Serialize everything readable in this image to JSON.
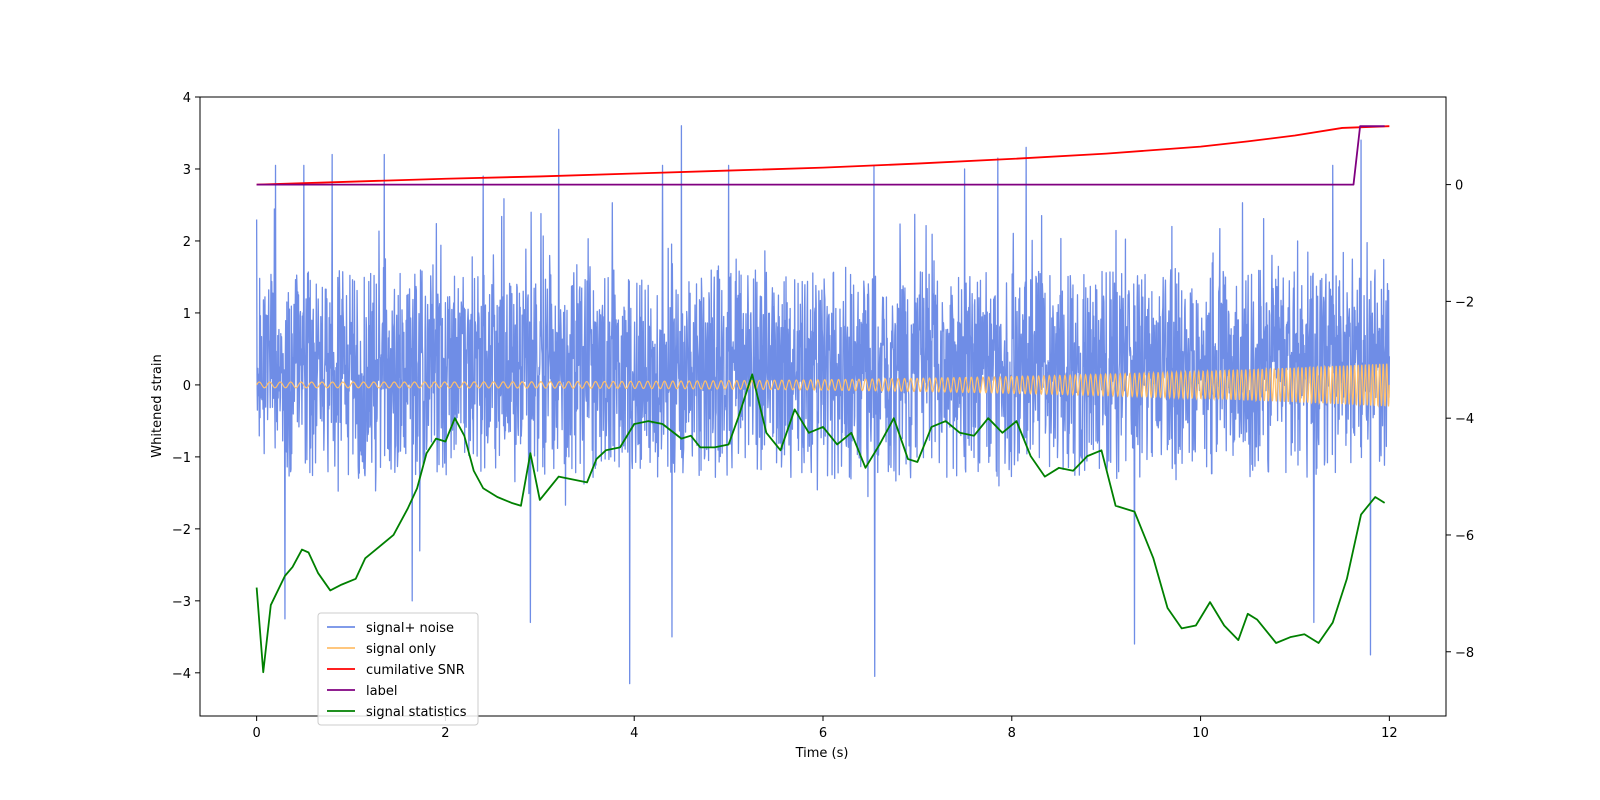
{
  "chart_data": {
    "type": "line",
    "title": "",
    "xlabel": "Time (s)",
    "ylabel": "Whitened strain",
    "xlim": [
      -0.6,
      12.6
    ],
    "ylim": [
      -4.6,
      4.0
    ],
    "ylim_right": [
      -9.1,
      1.5
    ],
    "x_ticks": [
      0,
      2,
      4,
      6,
      8,
      10,
      12
    ],
    "x_tick_labels": [
      "0",
      "2",
      "4",
      "6",
      "8",
      "10",
      "12"
    ],
    "y_ticks": [
      4,
      3,
      2,
      1,
      0,
      -1,
      -2,
      -3,
      -4
    ],
    "y_tick_labels": [
      "4",
      "3",
      "2",
      "1",
      "0",
      "−1",
      "−2",
      "−3",
      "−4"
    ],
    "y_right_ticks": [
      0,
      -2,
      -4,
      -6,
      -8
    ],
    "y_right_tick_labels": [
      "0",
      "−2",
      "−4",
      "−6",
      "−8"
    ],
    "grid": false,
    "legend_position": "lower-left",
    "series": [
      {
        "name": "signal+ noise",
        "axis": "left",
        "color": "#6f8de6",
        "style": "noise",
        "x_range": [
          0,
          12
        ],
        "center": 0.3,
        "sigma": 0.72,
        "band": [
          -1.3,
          1.6
        ],
        "spike_peaks": [
          [
            0.2,
            3.05
          ],
          [
            0.5,
            3.05
          ],
          [
            0.8,
            3.2
          ],
          [
            1.35,
            3.2
          ],
          [
            2.4,
            2.9
          ],
          [
            3.2,
            3.55
          ],
          [
            4.3,
            3.05
          ],
          [
            4.5,
            3.6
          ],
          [
            5.0,
            3.05
          ],
          [
            7.5,
            3.0
          ],
          [
            7.85,
            3.15
          ],
          [
            8.15,
            3.3
          ],
          [
            11.4,
            3.05
          ],
          [
            11.7,
            3.4
          ]
        ],
        "spike_troughs": [
          [
            1.65,
            -3.0
          ],
          [
            3.95,
            -4.15
          ],
          [
            4.4,
            -3.5
          ],
          [
            2.9,
            -3.3
          ],
          [
            6.55,
            -4.05
          ],
          [
            9.3,
            -3.6
          ],
          [
            11.2,
            -3.3
          ],
          [
            11.8,
            -3.75
          ],
          [
            0.3,
            -3.25
          ]
        ]
      },
      {
        "name": "signal only",
        "axis": "left",
        "color": "#ffbf6b",
        "style": "chirp",
        "x_range": [
          0,
          12
        ],
        "amplitude_start": 0.04,
        "amplitude_end": 0.3,
        "cycles": 180
      },
      {
        "name": "cumilative SNR",
        "axis": "right",
        "color": "#ff0000",
        "x": [
          0,
          1,
          2,
          3,
          4,
          5,
          6,
          7,
          8,
          9,
          10,
          10.5,
          11,
          11.5,
          12
        ],
        "y": [
          0.0,
          0.05,
          0.1,
          0.14,
          0.19,
          0.24,
          0.29,
          0.36,
          0.44,
          0.53,
          0.65,
          0.74,
          0.84,
          0.97,
          1.0
        ]
      },
      {
        "name": "label",
        "axis": "right",
        "color": "#800080",
        "x": [
          0,
          11.62,
          11.69,
          11.95
        ],
        "y": [
          0,
          0,
          1.0,
          1.0
        ]
      },
      {
        "name": "signal statistics",
        "axis": "right",
        "color": "#008000",
        "x": [
          0.0,
          0.07,
          0.15,
          0.3,
          0.38,
          0.48,
          0.55,
          0.65,
          0.78,
          0.9,
          1.05,
          1.15,
          1.3,
          1.45,
          1.6,
          1.7,
          1.8,
          1.9,
          2.0,
          2.1,
          2.2,
          2.3,
          2.4,
          2.55,
          2.7,
          2.8,
          2.9,
          3.0,
          3.1,
          3.2,
          3.35,
          3.5,
          3.6,
          3.7,
          3.85,
          4.0,
          4.15,
          4.3,
          4.5,
          4.6,
          4.7,
          4.85,
          5.0,
          5.1,
          5.25,
          5.4,
          5.55,
          5.7,
          5.85,
          6.0,
          6.15,
          6.3,
          6.45,
          6.6,
          6.75,
          6.9,
          7.0,
          7.15,
          7.3,
          7.45,
          7.6,
          7.75,
          7.9,
          8.05,
          8.2,
          8.35,
          8.5,
          8.65,
          8.8,
          8.95,
          9.1,
          9.3,
          9.5,
          9.65,
          9.8,
          9.95,
          10.1,
          10.25,
          10.4,
          10.5,
          10.6,
          10.8,
          10.95,
          11.1,
          11.25,
          11.4,
          11.55,
          11.7,
          11.85,
          11.95
        ],
        "y": [
          -6.9,
          -8.35,
          -7.2,
          -6.7,
          -6.55,
          -6.25,
          -6.3,
          -6.65,
          -6.95,
          -6.85,
          -6.75,
          -6.4,
          -6.2,
          -6.0,
          -5.55,
          -5.2,
          -4.6,
          -4.35,
          -4.4,
          -4.0,
          -4.3,
          -4.9,
          -5.2,
          -5.35,
          -5.45,
          -5.5,
          -4.6,
          -5.4,
          -5.2,
          -5.0,
          -5.05,
          -5.1,
          -4.7,
          -4.55,
          -4.5,
          -4.1,
          -4.05,
          -4.1,
          -4.35,
          -4.3,
          -4.5,
          -4.5,
          -4.45,
          -4.0,
          -3.25,
          -4.25,
          -4.55,
          -3.85,
          -4.25,
          -4.15,
          -4.45,
          -4.25,
          -4.85,
          -4.45,
          -4.0,
          -4.7,
          -4.75,
          -4.15,
          -4.05,
          -4.25,
          -4.3,
          -4.0,
          -4.25,
          -4.05,
          -4.65,
          -5.0,
          -4.85,
          -4.9,
          -4.65,
          -4.55,
          -5.5,
          -5.6,
          -6.4,
          -7.25,
          -7.6,
          -7.55,
          -7.15,
          -7.55,
          -7.8,
          -7.35,
          -7.45,
          -7.85,
          -7.75,
          -7.7,
          -7.85,
          -7.5,
          -6.75,
          -5.65,
          -5.35,
          -5.45
        ]
      }
    ]
  }
}
